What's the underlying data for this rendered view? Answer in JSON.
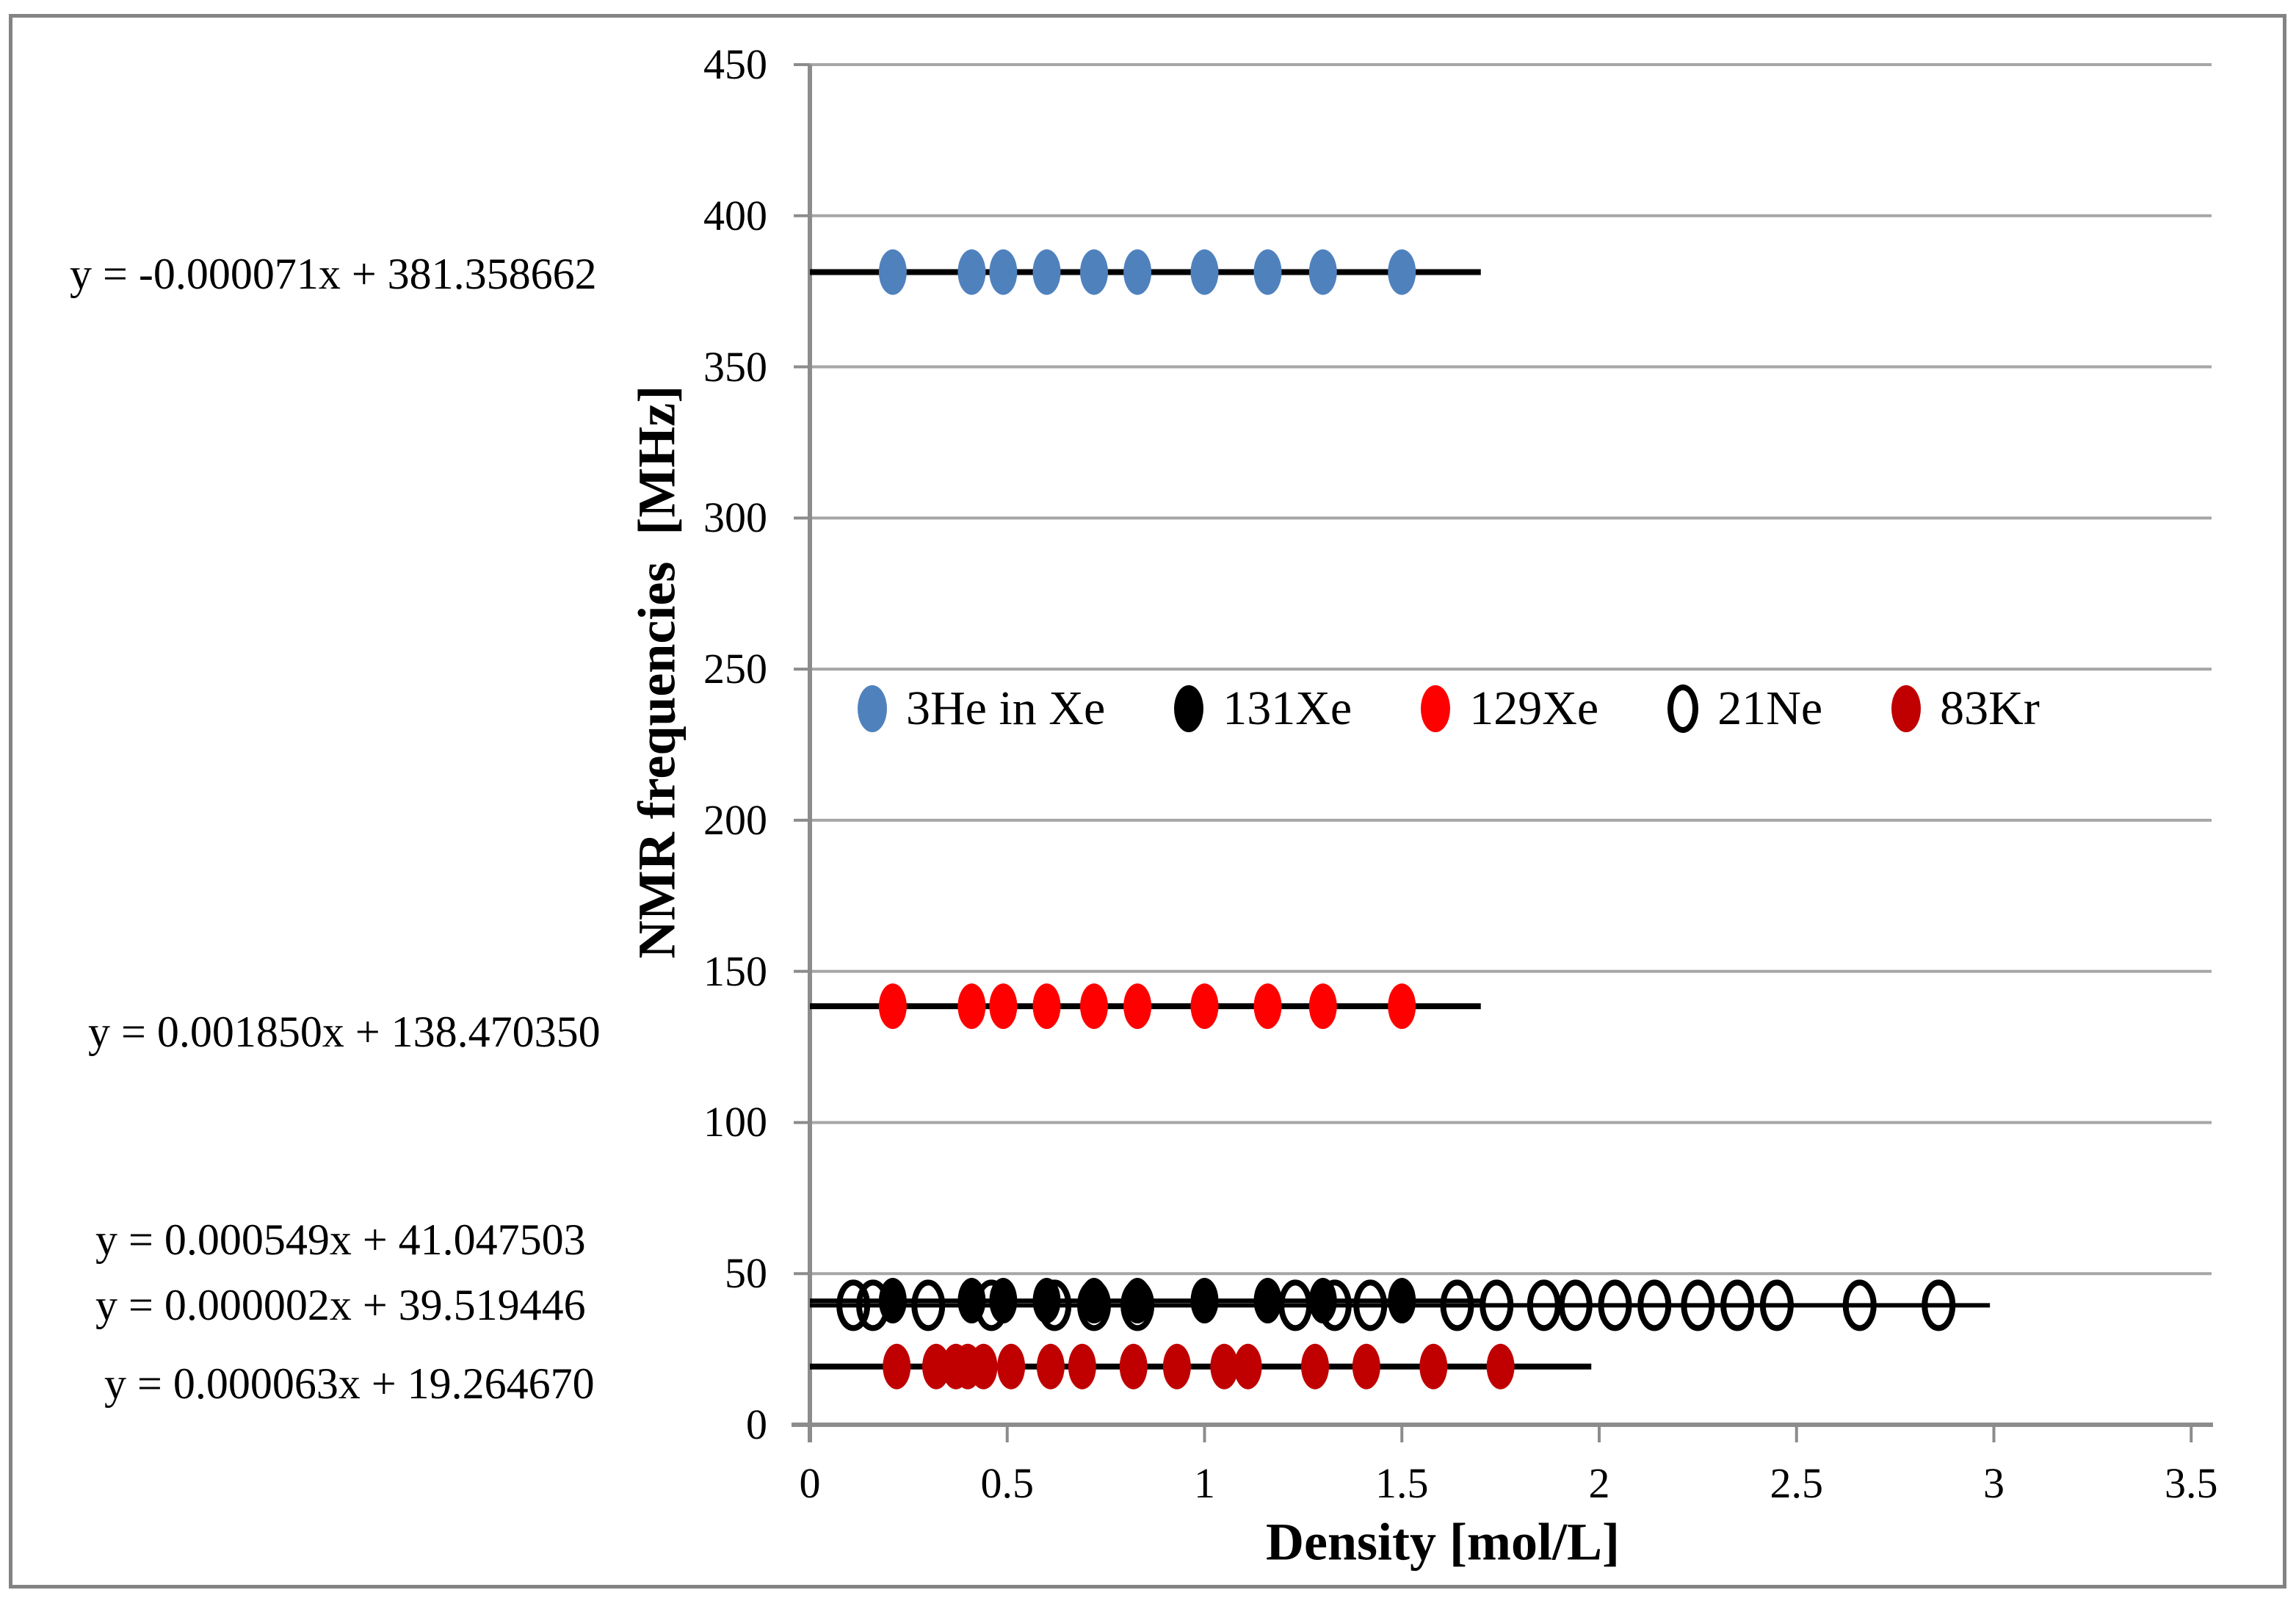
{
  "chart_data": {
    "type": "scatter",
    "title": "",
    "xlabel": "Density [mol/L]",
    "ylabel": "NMR frequencies  [MHz]",
    "xlim": [
      0,
      3.5
    ],
    "ylim": [
      0,
      450
    ],
    "x_ticks": [
      "0",
      "0.5",
      "1",
      "1.5",
      "2",
      "2.5",
      "3",
      "3.5"
    ],
    "y_ticks": [
      "0",
      "50",
      "100",
      "150",
      "200",
      "250",
      "300",
      "350",
      "400",
      "450"
    ],
    "grid": "horizontal-gray-lines",
    "legend_position": "inside-plot-single-row",
    "grid_color": "#A6A6A6",
    "axis_color": "#8C8C8C",
    "series": [
      {
        "name": "3He in Xe",
        "color": "#4F81BD",
        "marker": "filled-circle",
        "x": [
          0.21,
          0.41,
          0.49,
          0.6,
          0.72,
          0.83,
          1.0,
          1.16,
          1.3,
          1.5
        ],
        "y_constant": 381.36,
        "trendline": {
          "slope": -7.1e-05,
          "intercept": 381.358662,
          "x_start": 0,
          "x_end": 1.7
        },
        "equation": "y = -0.000071x + 381.358662"
      },
      {
        "name": "131Xe",
        "color": "#000000",
        "marker": "filled-circle",
        "x": [
          0.21,
          0.41,
          0.49,
          0.6,
          0.72,
          0.83,
          1.0,
          1.16,
          1.3,
          1.5
        ],
        "y_constant": 41.05,
        "trendline": {
          "slope": 0.000549,
          "intercept": 41.047503,
          "x_start": 0,
          "x_end": 1.7
        },
        "equation": "y = 0.000549x + 41.047503"
      },
      {
        "name": "129Xe",
        "color": "#FF0000",
        "marker": "filled-circle",
        "x": [
          0.21,
          0.41,
          0.49,
          0.6,
          0.72,
          0.83,
          1.0,
          1.16,
          1.3,
          1.5
        ],
        "y_constant": 138.47,
        "trendline": {
          "slope": 0.00185,
          "intercept": 138.47035,
          "x_start": 0,
          "x_end": 1.7
        },
        "equation": "y = 0.001850x + 138.470350"
      },
      {
        "name": "21Ne",
        "color": "#000000",
        "marker": "open-circle",
        "x": [
          0.11,
          0.16,
          0.3,
          0.46,
          0.62,
          0.72,
          0.83,
          1.23,
          1.33,
          1.42,
          1.64,
          1.74,
          1.86,
          1.94,
          2.04,
          2.14,
          2.25,
          2.35,
          2.45,
          2.66,
          2.86
        ],
        "y_constant": 39.52,
        "trendline": {
          "slope": 2e-06,
          "intercept": 39.519446,
          "x_start": 0,
          "x_end": 2.99
        },
        "equation": "y = 0.000002x + 39.519446"
      },
      {
        "name": "83Kr",
        "color": "#C00000",
        "marker": "filled-circle",
        "x": [
          0.22,
          0.32,
          0.37,
          0.4,
          0.44,
          0.51,
          0.61,
          0.69,
          0.82,
          0.93,
          1.05,
          1.11,
          1.28,
          1.41,
          1.58,
          1.75
        ],
        "y_constant": 19.26,
        "trendline": {
          "slope": 6.3e-05,
          "intercept": 19.26467,
          "x_start": 0,
          "x_end": 1.98
        },
        "equation": "y = 0.000063x + 19.264670"
      }
    ],
    "annotations": [
      {
        "text": "y = -0.000071x + 381.358662",
        "series": "3He in Xe"
      },
      {
        "text": "y = 0.001850x + 138.470350",
        "series": "129Xe"
      },
      {
        "text": "y = 0.000549x + 41.047503",
        "series": "131Xe"
      },
      {
        "text": "y = 0.000002x + 39.519446",
        "series": "21Ne"
      },
      {
        "text": "y = 0.000063x + 19.264670",
        "series": "83Kr"
      }
    ]
  }
}
